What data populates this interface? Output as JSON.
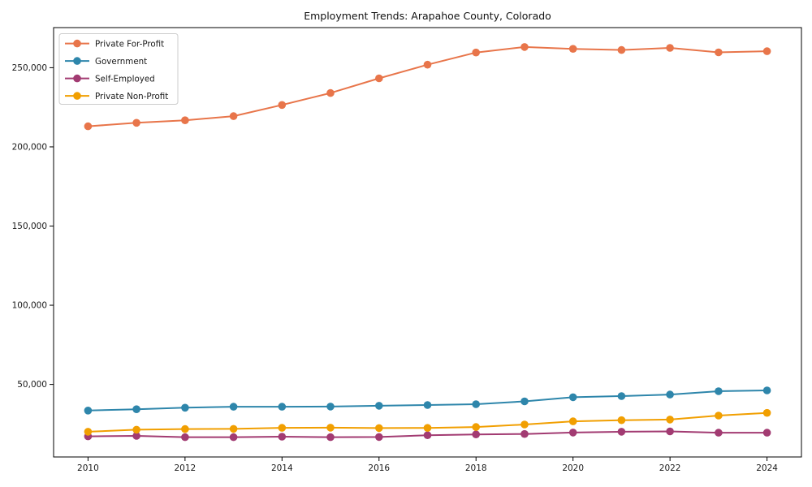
{
  "figure": {
    "background": "#ffffff",
    "axis_color": "#000000",
    "tick_label_color": "#1a1a1a"
  },
  "chart_data": {
    "type": "line",
    "title": "Employment Trends: Arapahoe County, Colorado",
    "xlabel": "",
    "ylabel": "",
    "grid": false,
    "x": [
      2010,
      2011,
      2012,
      2013,
      2014,
      2015,
      2016,
      2017,
      2018,
      2019,
      2020,
      2021,
      2022,
      2023,
      2024
    ],
    "series": [
      {
        "name": "Private For-Profit",
        "color": "#E8754A",
        "values": [
          213000,
          215200,
          216800,
          219400,
          226500,
          234000,
          243300,
          251900,
          259600,
          263100,
          261900,
          261200,
          262500,
          259700,
          260400
        ]
      },
      {
        "name": "Government",
        "color": "#2E86AB",
        "values": [
          33500,
          34300,
          35300,
          35900,
          35900,
          36000,
          36500,
          37000,
          37500,
          39300,
          41900,
          42600,
          43600,
          45700,
          46200
        ]
      },
      {
        "name": "Self-Employed",
        "color": "#A23B72",
        "values": [
          17200,
          17500,
          16700,
          16700,
          17000,
          16700,
          16800,
          17900,
          18400,
          18700,
          19600,
          20100,
          20300,
          19500,
          19500
        ]
      },
      {
        "name": "Private Non-Profit",
        "color": "#F19F01",
        "values": [
          20100,
          21400,
          21800,
          21900,
          22600,
          22700,
          22400,
          22500,
          23100,
          24700,
          26700,
          27400,
          27800,
          30300,
          32000
        ]
      }
    ],
    "xticks": {
      "values": [
        2010,
        2012,
        2014,
        2016,
        2018,
        2020,
        2022,
        2024
      ],
      "labels": [
        "2010",
        "2012",
        "2014",
        "2016",
        "2018",
        "2020",
        "2022",
        "2024"
      ]
    },
    "yticks": {
      "values": [
        50000,
        100000,
        150000,
        200000,
        250000
      ],
      "labels": [
        "50,000",
        "100,000",
        "150,000",
        "200,000",
        "250,000"
      ]
    },
    "xlim": [
      2009.29,
      2024.71
    ],
    "ylim": [
      4175,
      275325
    ],
    "legend": {
      "position": "upper-left",
      "border_color": "#cccccc",
      "background": "rgba(255,255,255,0.85)",
      "entries": [
        "Private For-Profit",
        "Government",
        "Self-Employed",
        "Private Non-Profit"
      ]
    }
  }
}
